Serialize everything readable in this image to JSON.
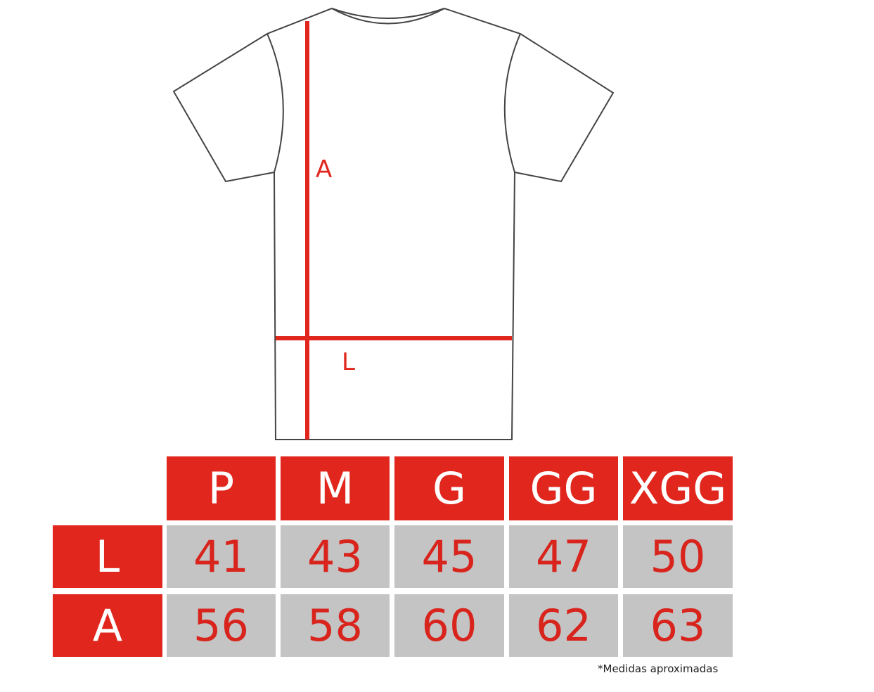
{
  "diagram": {
    "measure_labels": {
      "height": "A",
      "width": "L"
    },
    "accent_color": "#e0261d",
    "cell_color": "#c4c4c4"
  },
  "table": {
    "sizes": [
      "P",
      "M",
      "G",
      "GG",
      "XGG"
    ],
    "rows": [
      {
        "label": "L",
        "values": [
          "41",
          "43",
          "45",
          "47",
          "50"
        ]
      },
      {
        "label": "A",
        "values": [
          "56",
          "58",
          "60",
          "62",
          "63"
        ]
      }
    ]
  },
  "footnote": "*Medidas aproximadas"
}
